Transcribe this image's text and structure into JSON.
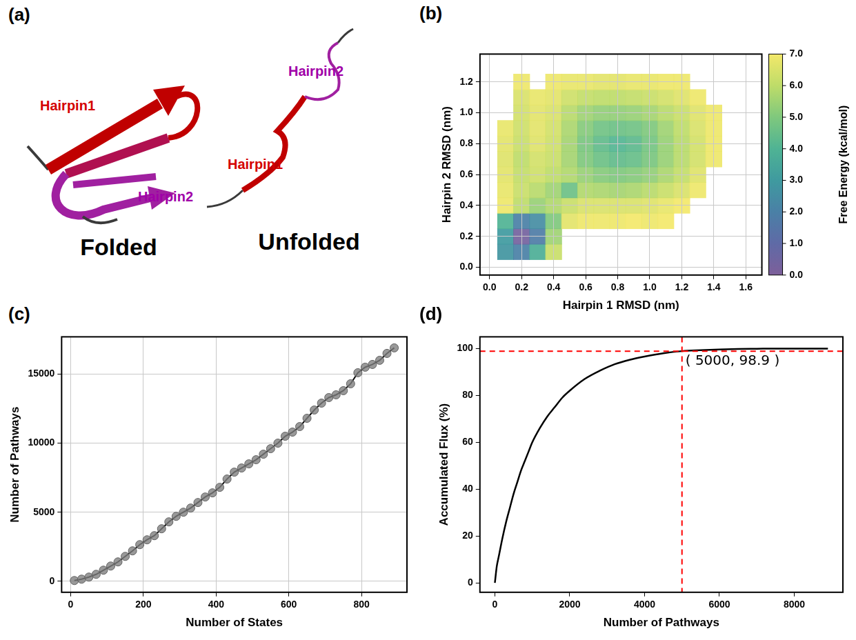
{
  "diagram": {
    "panel": "(a)",
    "structures": [
      {
        "caption": "Folded",
        "labels": [
          {
            "text": "Hairpin1",
            "color": "#d40000"
          },
          {
            "text": "Hairpin2",
            "color": "#a000a8"
          }
        ]
      },
      {
        "caption": "Unfolded",
        "labels": [
          {
            "text": "Hairpin1",
            "color": "#d40000"
          },
          {
            "text": "Hairpin2",
            "color": "#a000a8"
          }
        ]
      }
    ]
  },
  "chart_data": [
    {
      "panel": "(b)",
      "type": "heatmap",
      "x_label": "Hairpin 1 RMSD (nm)",
      "y_label": "Hairpin 2 RMSD (nm)",
      "x": [
        0.1,
        0.2,
        0.3,
        0.4,
        0.5,
        0.6,
        0.7,
        0.8,
        0.9,
        1.0,
        1.1,
        1.2,
        1.3,
        1.4
      ],
      "y": [
        0.1,
        0.2,
        0.3,
        0.4,
        0.5,
        0.6,
        0.7,
        0.8,
        0.9,
        1.0,
        1.1,
        1.2
      ],
      "values": [
        [
          2.8,
          2.0,
          3.8,
          6.2,
          null,
          null,
          null,
          null,
          null,
          null,
          null,
          null,
          null,
          null
        ],
        [
          3.0,
          0.3,
          1.8,
          5.5,
          null,
          null,
          null,
          null,
          null,
          null,
          null,
          null,
          null,
          null
        ],
        [
          4.0,
          2.0,
          2.5,
          5.0,
          6.7,
          6.9,
          6.9,
          6.9,
          7.0,
          6.9,
          7.0,
          null,
          null,
          null
        ],
        [
          6.9,
          6.0,
          5.4,
          5.8,
          6.2,
          6.5,
          6.5,
          6.5,
          6.5,
          6.6,
          6.8,
          7.0,
          null,
          null
        ],
        [
          6.8,
          6.2,
          5.9,
          5.5,
          4.6,
          5.8,
          5.7,
          5.6,
          5.7,
          5.9,
          6.2,
          6.5,
          6.9,
          null
        ],
        [
          6.7,
          6.1,
          6.3,
          6.0,
          5.8,
          5.4,
          5.1,
          5.0,
          5.1,
          5.3,
          5.7,
          6.1,
          6.6,
          null
        ],
        [
          6.6,
          6.0,
          6.4,
          6.2,
          5.6,
          5.0,
          4.6,
          4.4,
          4.5,
          4.9,
          5.4,
          5.9,
          6.4,
          6.9
        ],
        [
          6.7,
          6.2,
          6.6,
          6.3,
          5.6,
          4.9,
          4.4,
          4.1,
          4.3,
          4.8,
          5.4,
          5.9,
          6.4,
          6.9
        ],
        [
          6.8,
          6.3,
          6.7,
          6.4,
          5.7,
          5.1,
          4.7,
          4.6,
          4.7,
          5.0,
          5.5,
          6.0,
          6.5,
          6.9
        ],
        [
          null,
          6.4,
          6.7,
          6.5,
          5.9,
          5.5,
          5.3,
          5.3,
          5.4,
          5.6,
          5.9,
          6.2,
          6.6,
          6.9
        ],
        [
          null,
          6.5,
          6.8,
          6.7,
          6.3,
          6.1,
          6.0,
          6.0,
          6.1,
          6.2,
          6.4,
          6.6,
          6.9,
          null
        ],
        [
          null,
          6.9,
          null,
          6.9,
          6.8,
          6.8,
          6.7,
          6.7,
          6.8,
          6.8,
          6.9,
          6.9,
          null,
          null
        ]
      ],
      "xlim": [
        -0.06,
        1.7
      ],
      "ylim": [
        -0.05,
        1.38
      ],
      "xticks": [
        {
          "value": 0,
          "label": "0.0"
        },
        {
          "value": 0.2,
          "label": "0.2"
        },
        {
          "value": 0.4,
          "label": "0.4"
        },
        {
          "value": 0.6,
          "label": "0.6"
        },
        {
          "value": 0.8,
          "label": "0.8"
        },
        {
          "value": 1.0,
          "label": "1.0"
        },
        {
          "value": 1.2,
          "label": "1.2"
        },
        {
          "value": 1.4,
          "label": "1.4"
        },
        {
          "value": 1.6,
          "label": "1.6"
        }
      ],
      "yticks": [
        {
          "value": 0,
          "label": "0.0"
        },
        {
          "value": 0.2,
          "label": "0.2"
        },
        {
          "value": 0.4,
          "label": "0.4"
        },
        {
          "value": 0.6,
          "label": "0.6"
        },
        {
          "value": 0.8,
          "label": "0.8"
        },
        {
          "value": 1.0,
          "label": "1.0"
        },
        {
          "value": 1.2,
          "label": "1.2"
        }
      ],
      "grid": true,
      "colorbar": {
        "label": "Free Energy (kcal/mol)",
        "range": [
          0,
          7
        ],
        "ticks": [
          {
            "value": 0,
            "label": "0.0"
          },
          {
            "value": 1,
            "label": "1.0"
          },
          {
            "value": 2,
            "label": "2.0"
          },
          {
            "value": 3,
            "label": "3.0"
          },
          {
            "value": 4,
            "label": "4.0"
          },
          {
            "value": 5,
            "label": "5.0"
          },
          {
            "value": 6,
            "label": "6.0"
          },
          {
            "value": 7,
            "label": "7.0"
          }
        ]
      }
    },
    {
      "panel": "(c)",
      "type": "line",
      "x_label": "Number of States",
      "y_label": "Number of Pathways",
      "x": [
        10,
        30,
        50,
        70,
        90,
        110,
        130,
        150,
        170,
        190,
        210,
        230,
        250,
        270,
        290,
        310,
        330,
        350,
        370,
        390,
        410,
        430,
        450,
        470,
        490,
        510,
        530,
        550,
        570,
        590,
        610,
        630,
        650,
        670,
        690,
        710,
        730,
        750,
        770,
        790,
        810,
        830,
        850,
        870,
        890
      ],
      "values": [
        50,
        150,
        300,
        500,
        800,
        1100,
        1400,
        1800,
        2200,
        2650,
        3000,
        3300,
        3800,
        4300,
        4700,
        5000,
        5300,
        5700,
        6100,
        6400,
        6800,
        7400,
        7900,
        8200,
        8500,
        8800,
        9200,
        9600,
        10000,
        10500,
        10800,
        11200,
        11800,
        12400,
        12900,
        13300,
        13500,
        13800,
        14300,
        15100,
        15500,
        15700,
        16000,
        16500,
        16900
      ],
      "color": "#000000",
      "marker": "circle",
      "xlim": [
        -25,
        925
      ],
      "ylim": [
        -800,
        17700
      ],
      "xticks": [
        0,
        200,
        400,
        600,
        800
      ],
      "yticks": [
        0,
        5000,
        10000,
        15000
      ],
      "grid": true
    },
    {
      "panel": "(d)",
      "type": "line",
      "x_label": "Number of Pathways",
      "y_label": "Accumulated Flux (%)",
      "x": [
        0,
        50,
        100,
        200,
        300,
        400,
        500,
        600,
        700,
        800,
        900,
        1000,
        1200,
        1400,
        1600,
        1800,
        2000,
        2400,
        2800,
        3200,
        3600,
        4000,
        4500,
        5000,
        5500,
        6000,
        6500,
        7000,
        7500,
        8000,
        8500,
        8900
      ],
      "values": [
        0,
        7,
        11,
        19,
        26,
        32,
        38,
        43,
        48,
        52,
        56,
        60,
        66,
        71,
        75,
        79,
        82,
        87,
        90.5,
        93.3,
        95.2,
        96.6,
        98,
        98.9,
        99.3,
        99.6,
        99.8,
        99.9,
        100,
        100,
        100,
        100
      ],
      "color": "#000000",
      "xlim": [
        -400,
        9300
      ],
      "ylim": [
        -4,
        105
      ],
      "xticks": [
        0,
        2000,
        4000,
        6000,
        8000
      ],
      "yticks": [
        0,
        20,
        40,
        60,
        80,
        100
      ],
      "grid": false,
      "annotations": [
        {
          "x": 5000,
          "y": 98.9,
          "text": "( 5000, 98.9 )",
          "color": "#ff0000",
          "line_style": "dashed"
        }
      ]
    }
  ]
}
